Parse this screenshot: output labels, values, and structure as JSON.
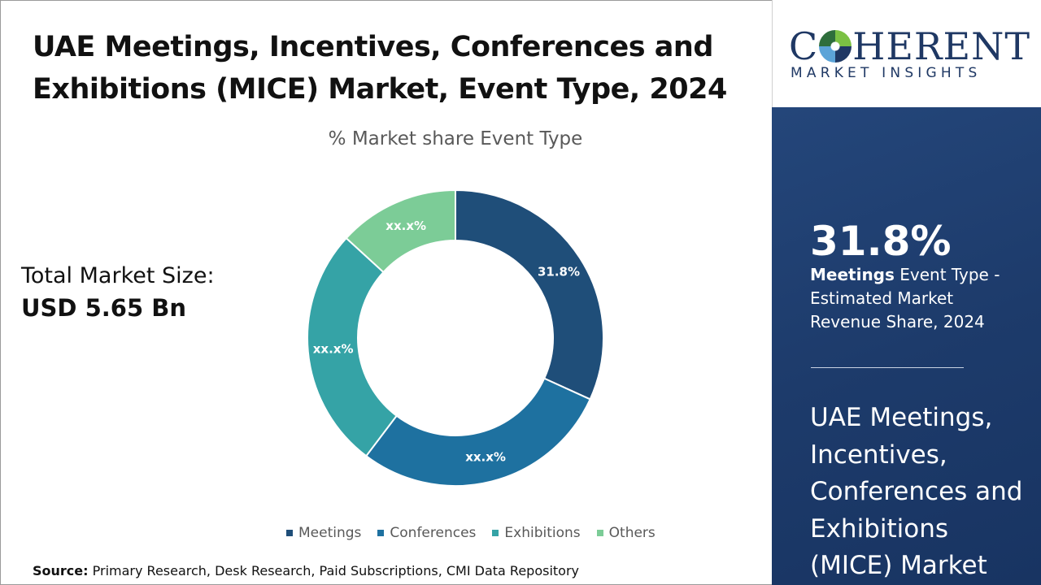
{
  "header": {
    "title": "UAE Meetings, Incentives, Conferences and Exhibitions (MICE) Market, Event Type, 2024"
  },
  "market": {
    "label": "Total Market Size:",
    "value": "USD 5.65 Bn"
  },
  "source": {
    "label": "Source:",
    "text": "Primary Research, Desk Research, Paid Subscriptions, CMI Data Repository"
  },
  "logo": {
    "name_before": "C",
    "name_after": "HERENT",
    "subtitle": "MARKET INSIGHTS"
  },
  "panel": {
    "highlight_value": "31.8%",
    "highlight_segment": "Meetings",
    "highlight_text": "Event Type - Estimated Market Revenue Share, 2024",
    "report_title": "UAE Meetings, Incentives, Conferences and Exhibitions (MICE) Market"
  },
  "chart_data": {
    "type": "pie",
    "title": "% Market share Event Type",
    "categories": [
      "Meetings",
      "Conferences",
      "Exhibitions",
      "Others"
    ],
    "values": [
      31.8,
      28.5,
      26.5,
      13.2
    ],
    "labels": [
      "31.8%",
      "xx.x%",
      "xx.x%",
      "xx.x%"
    ],
    "colors": [
      "#1f4e79",
      "#1e71a0",
      "#35a3a6",
      "#7ccc97"
    ],
    "donut": true,
    "legend": "bottom"
  }
}
